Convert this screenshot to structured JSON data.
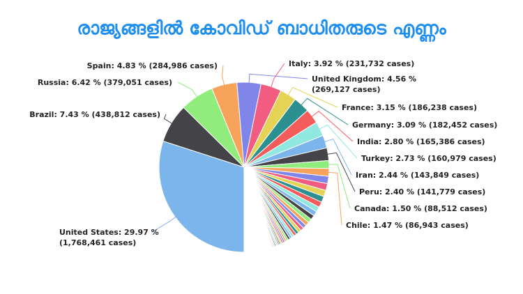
{
  "chart_data": {
    "type": "pie",
    "title": "രാജ്യങ്ങളിൽ കോവിഡ് ബാധിതരുടെ എണ്ണം",
    "start_angle_deg": 180,
    "direction": "clockwise",
    "label_format": "{name}: {percent} % ({cases} cases)",
    "series": [
      {
        "name": "United States",
        "percent": 29.97,
        "cases": "1,768,461",
        "color": "#7cb5ec"
      },
      {
        "name": "Brazil",
        "percent": 7.43,
        "cases": "438,812",
        "color": "#434348"
      },
      {
        "name": "Russia",
        "percent": 6.42,
        "cases": "379,051",
        "color": "#90ed7d"
      },
      {
        "name": "Spain",
        "percent": 4.83,
        "cases": "284,986",
        "color": "#f7a35c"
      },
      {
        "name": "United Kingdom",
        "percent": 4.56,
        "cases": "269,127",
        "color": "#8085e9"
      },
      {
        "name": "Italy",
        "percent": 3.92,
        "cases": "231,732",
        "color": "#f15c80"
      },
      {
        "name": "France",
        "percent": 3.15,
        "cases": "186,238",
        "color": "#e4d354"
      },
      {
        "name": "Germany",
        "percent": 3.09,
        "cases": "182,452",
        "color": "#2b908f"
      },
      {
        "name": "India",
        "percent": 2.8,
        "cases": "165,386",
        "color": "#f45b5b"
      },
      {
        "name": "Turkey",
        "percent": 2.73,
        "cases": "160,979",
        "color": "#91e8e1"
      },
      {
        "name": "Iran",
        "percent": 2.44,
        "cases": "143,849",
        "color": "#7cb5ec"
      },
      {
        "name": "Peru",
        "percent": 2.4,
        "cases": "141,779",
        "color": "#434348"
      },
      {
        "name": "Canada",
        "percent": 1.5,
        "cases": "88,512",
        "color": "#90ed7d"
      },
      {
        "name": "Chile",
        "percent": 1.47,
        "cases": "86,943",
        "color": "#f7a35c"
      }
    ],
    "unlabeled_remainder_percent": 23.29,
    "palette": [
      "#7cb5ec",
      "#434348",
      "#90ed7d",
      "#f7a35c",
      "#8085e9",
      "#f15c80",
      "#e4d354",
      "#2b908f",
      "#f45b5b",
      "#91e8e1"
    ]
  }
}
